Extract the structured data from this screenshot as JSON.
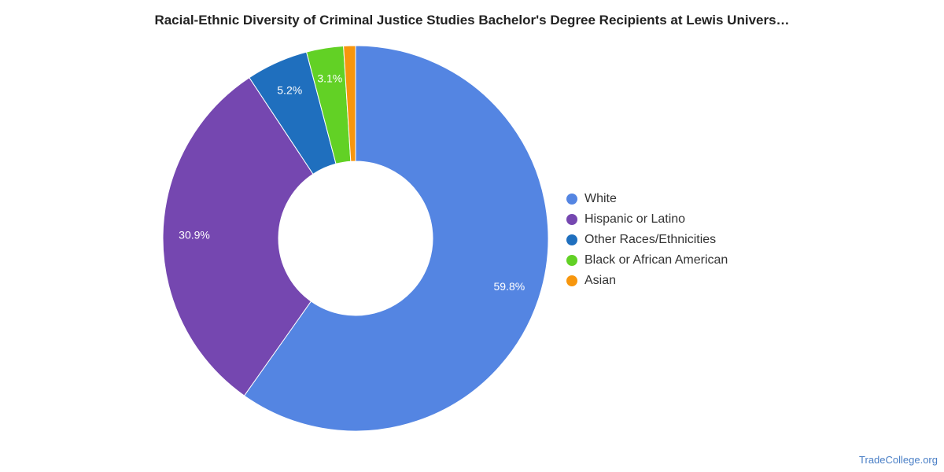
{
  "chart_data": {
    "type": "pie",
    "title": "Racial-Ethnic Diversity of Criminal Justice Studies Bachelor's Degree Recipients at Lewis Univers…",
    "donut": true,
    "legend_position": "right",
    "slices": [
      {
        "label": "White",
        "value": 59.8,
        "value_label": "59.8%",
        "color": "#5485e2"
      },
      {
        "label": "Hispanic or Latino",
        "value": 30.9,
        "value_label": "30.9%",
        "color": "#7547b0"
      },
      {
        "label": "Other Races/Ethnicities",
        "value": 5.2,
        "value_label": "5.2%",
        "color": "#1f6fbe"
      },
      {
        "label": "Black or African American",
        "value": 3.1,
        "value_label": "3.1%",
        "color": "#62d125"
      },
      {
        "label": "Asian",
        "value": 1.0,
        "value_label": "",
        "color": "#f7960d"
      }
    ]
  },
  "footer": {
    "source": "TradeCollege.org"
  }
}
